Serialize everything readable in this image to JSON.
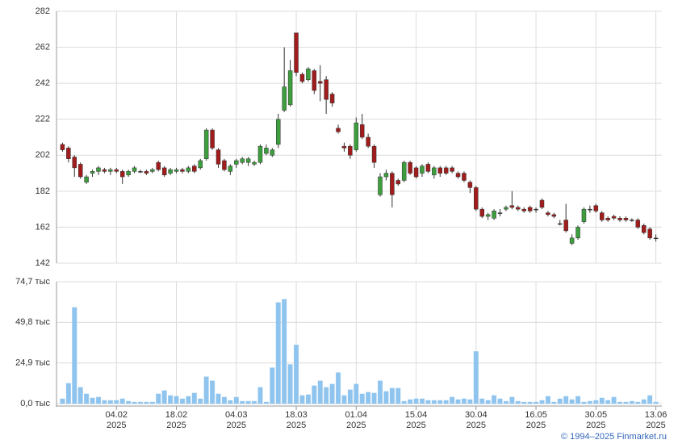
{
  "chart_data": [
    {
      "type": "candlestick",
      "up_color": "#3c9e3c",
      "down_color": "#a11c1c",
      "xlim": [
        -1,
        100
      ],
      "ylim": [
        142,
        282
      ],
      "yticks": [
        142,
        162,
        182,
        202,
        222,
        242,
        262,
        282
      ],
      "grid": true,
      "open": [
        208,
        206,
        201,
        197,
        187,
        192,
        193,
        194,
        193,
        194,
        193,
        191,
        193,
        193,
        193,
        193,
        198,
        195,
        192,
        193,
        194,
        193,
        196,
        195,
        200,
        216,
        205,
        199,
        193,
        197,
        198,
        198,
        197,
        198,
        203,
        202,
        208,
        227,
        230,
        270,
        247,
        244,
        249,
        243,
        244,
        236,
        217,
        207,
        207,
        205,
        219,
        212,
        207,
        180,
        190,
        192,
        188,
        188,
        198,
        195,
        192,
        197,
        191,
        195,
        195,
        195,
        192,
        192,
        187,
        184,
        172,
        168,
        167,
        170,
        172,
        174,
        173,
        172,
        173,
        172,
        177,
        170,
        169,
        164,
        166,
        153,
        156,
        165,
        172,
        174,
        170,
        167,
        168,
        167,
        167,
        166,
        166,
        163,
        161,
        156
      ],
      "high": [
        209,
        207,
        202,
        198,
        191,
        194,
        196,
        195,
        195,
        195,
        194,
        194,
        196,
        194,
        194,
        195,
        199,
        196,
        195,
        195,
        195,
        196,
        197,
        200,
        217,
        217,
        206,
        200,
        197,
        200,
        201,
        201,
        199,
        208,
        208,
        206,
        225,
        262,
        255,
        270,
        248,
        251,
        250,
        252,
        246,
        237,
        219,
        209,
        208,
        223,
        225,
        214,
        208,
        192,
        194,
        193,
        189,
        199,
        199,
        196,
        197,
        198,
        196,
        196,
        196,
        196,
        193,
        193,
        188,
        185,
        173,
        170,
        172,
        172,
        174,
        182,
        174,
        173,
        174,
        173,
        178,
        171,
        170,
        166,
        175,
        158,
        163,
        173,
        174,
        175,
        171,
        168,
        169,
        168,
        168,
        167,
        167,
        164,
        162,
        158
      ],
      "low": [
        204,
        198,
        190,
        189,
        186,
        190,
        191,
        192,
        191,
        192,
        186,
        190,
        192,
        192,
        191,
        192,
        193,
        190,
        191,
        192,
        192,
        192,
        192,
        194,
        199,
        205,
        195,
        193,
        191,
        195,
        197,
        196,
        196,
        197,
        202,
        201,
        206,
        226,
        229,
        246,
        242,
        243,
        236,
        232,
        225,
        229,
        214,
        204,
        200,
        204,
        211,
        206,
        195,
        179,
        188,
        173,
        185,
        187,
        191,
        189,
        190,
        192,
        189,
        190,
        191,
        192,
        189,
        187,
        181,
        171,
        167,
        166,
        166,
        168,
        171,
        172,
        171,
        170,
        170,
        170,
        172,
        168,
        167,
        163,
        159,
        152,
        155,
        164,
        170,
        170,
        165,
        165,
        166,
        165,
        165,
        165,
        161,
        158,
        155,
        154
      ],
      "close": [
        205,
        200,
        195,
        190,
        190,
        193,
        195,
        193,
        194,
        193,
        190,
        193,
        195,
        193,
        192,
        194,
        194,
        191,
        194,
        194,
        193,
        195,
        193,
        199,
        216,
        206,
        197,
        194,
        196,
        199,
        200,
        200,
        198,
        207,
        206,
        205,
        222,
        240,
        249,
        248,
        243,
        250,
        238,
        242,
        233,
        231,
        215,
        206,
        202,
        220,
        212,
        207,
        198,
        190,
        192,
        180,
        186,
        198,
        192,
        190,
        196,
        193,
        195,
        192,
        192,
        193,
        190,
        188,
        184,
        172,
        168,
        169,
        171,
        170,
        173,
        173,
        172,
        171,
        171,
        172,
        173,
        169,
        168,
        164,
        160,
        156,
        162,
        172,
        172,
        171,
        166,
        166,
        167,
        166,
        166,
        166,
        162,
        159,
        156,
        156
      ]
    },
    {
      "type": "bar",
      "color": "#8fc4ee",
      "xlim": [
        -1,
        100
      ],
      "ylim": [
        0,
        74.7
      ],
      "yticks": [
        {
          "value": 0,
          "label": "0,0 тыс"
        },
        {
          "value": 24.9,
          "label": "24,9 тыс"
        },
        {
          "value": 49.8,
          "label": "49,8 тыс"
        },
        {
          "value": 74.7,
          "label": "74,7 тыс"
        }
      ],
      "grid": true,
      "xticks": [
        {
          "value": 9,
          "label": "04.02\n2025"
        },
        {
          "value": 19,
          "label": "18.02\n2025"
        },
        {
          "value": 29,
          "label": "04.03\n2025"
        },
        {
          "value": 39,
          "label": "18.03\n2025"
        },
        {
          "value": 49,
          "label": "01.04\n2025"
        },
        {
          "value": 59,
          "label": "15.04\n2025"
        },
        {
          "value": 69,
          "label": "30.04\n2025"
        },
        {
          "value": 79,
          "label": "16.05\n2025"
        },
        {
          "value": 89,
          "label": "30.05\n2025"
        },
        {
          "value": 99,
          "label": "13.06\n2025"
        }
      ],
      "values": [
        3,
        12.5,
        59,
        10,
        6,
        3.5,
        4,
        2,
        2,
        2,
        3,
        1.5,
        1,
        1,
        1,
        1,
        6,
        8,
        5,
        4.5,
        3,
        4.5,
        6.5,
        3,
        16.5,
        14,
        6,
        4,
        2,
        4,
        1.5,
        1.5,
        1.5,
        10,
        1,
        22,
        62,
        64,
        24,
        36,
        5,
        5.5,
        11,
        14,
        10,
        12,
        19,
        5,
        8.5,
        12,
        6,
        7,
        6.5,
        14,
        7.5,
        9.5,
        9.5,
        1.5,
        2.5,
        3,
        3,
        2,
        2,
        2,
        2,
        4,
        2.5,
        3,
        2.5,
        32,
        3,
        2,
        5,
        3,
        1.5,
        4,
        1.5,
        1,
        1,
        1,
        2,
        4.5,
        1,
        3,
        4.5,
        2.5,
        4.5,
        1,
        1.5,
        2,
        3.5,
        2,
        4,
        1,
        1,
        1.5,
        1,
        2.5,
        5,
        1
      ]
    }
  ],
  "footer": "© 1994–2025 Finmarket.ru"
}
